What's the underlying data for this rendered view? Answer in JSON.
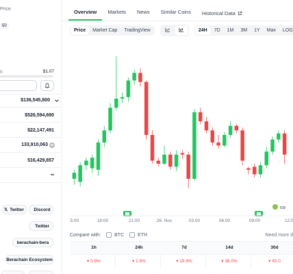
{
  "left": {
    "price_label": "Price",
    "small_value": "50",
    "range_low": "0",
    "range_high": "$1.07",
    "stats": [
      {
        "value": "$136,545,800",
        "icon": "chevron-down-icon"
      },
      {
        "value": "$526,594,690"
      },
      {
        "value": "$22,147,491"
      },
      {
        "value": "133,910,063",
        "icon": "info-icon"
      },
      {
        "value": "516,429,857"
      },
      {
        "value": "∞"
      }
    ],
    "links": {
      "twitter": "Twitter",
      "discord": "Discord",
      "search_twitter": "Twitter",
      "api_id": "berachain-bera",
      "category": "Berachain Ecosystem"
    }
  },
  "main": {
    "tabs": [
      {
        "label": "Overview",
        "active": true
      },
      {
        "label": "Markets"
      },
      {
        "label": "News"
      },
      {
        "label": "Similar Coins"
      },
      {
        "label": "Historical Data"
      }
    ],
    "chart_modes": [
      {
        "label": "Price",
        "selected": true
      },
      {
        "label": "Market Cap"
      },
      {
        "label": "TradingView"
      }
    ],
    "ranges": [
      {
        "label": "24H",
        "selected": true
      },
      {
        "label": "7D"
      },
      {
        "label": "1M"
      },
      {
        "label": "3M"
      },
      {
        "label": "1Y"
      },
      {
        "label": "Max"
      },
      {
        "label": "LOG"
      }
    ],
    "watermark": "co",
    "compare": {
      "label": "Compare with:",
      "options": [
        "BTC",
        "ETH"
      ],
      "right_text": "Need more d"
    },
    "performance": {
      "headers": [
        "1h",
        "24h",
        "7d",
        "14d",
        "30d"
      ],
      "values": [
        "▾ 0.9%",
        "▾ 1.6%",
        "▾ 19.9%",
        "▾ 36.0%",
        "▾ 45.0"
      ]
    }
  },
  "colors": {
    "up": "#22c55e",
    "down": "#ef4444",
    "accent": "#22c55e"
  },
  "chart_data": {
    "type": "candlestick",
    "x_ticks": [
      "15:00",
      "18:00",
      "21:00",
      "26. Nov",
      "03:00",
      "06:00",
      "09:00",
      "12:0"
    ],
    "candles": [
      {
        "o": 54,
        "c": 58,
        "h": 60,
        "l": 50
      },
      {
        "o": 52,
        "c": 63,
        "h": 65,
        "l": 49
      },
      {
        "o": 63,
        "c": 66,
        "h": 68,
        "l": 60
      },
      {
        "o": 61,
        "c": 68,
        "h": 70,
        "l": 58
      },
      {
        "o": 60,
        "c": 78,
        "h": 80,
        "l": 56
      },
      {
        "o": 78,
        "c": 86,
        "h": 89,
        "l": 75
      },
      {
        "o": 86,
        "c": 101,
        "h": 104,
        "l": 84
      },
      {
        "o": 101,
        "c": 107,
        "h": 135,
        "l": 99
      },
      {
        "o": 107,
        "c": 108,
        "h": 111,
        "l": 104
      },
      {
        "o": 108,
        "c": 119,
        "h": 121,
        "l": 105
      },
      {
        "o": 119,
        "c": 124,
        "h": 126,
        "l": 116
      },
      {
        "o": 124,
        "c": 118,
        "h": 127,
        "l": 115
      },
      {
        "o": 118,
        "c": 83,
        "h": 119,
        "l": 80
      },
      {
        "o": 83,
        "c": 66,
        "h": 86,
        "l": 64
      },
      {
        "o": 66,
        "c": 64,
        "h": 68,
        "l": 62
      },
      {
        "o": 64,
        "c": 70,
        "h": 76,
        "l": 63
      },
      {
        "o": 70,
        "c": 62,
        "h": 72,
        "l": 60
      },
      {
        "o": 62,
        "c": 70,
        "h": 73,
        "l": 59
      },
      {
        "o": 71,
        "c": 70,
        "h": 73,
        "l": 67
      },
      {
        "o": 70,
        "c": 54,
        "h": 72,
        "l": 48
      },
      {
        "o": 54,
        "c": 98,
        "h": 100,
        "l": 53
      },
      {
        "o": 98,
        "c": 92,
        "h": 101,
        "l": 90
      },
      {
        "o": 92,
        "c": 86,
        "h": 95,
        "l": 84
      },
      {
        "o": 86,
        "c": 78,
        "h": 88,
        "l": 76
      },
      {
        "o": 78,
        "c": 76,
        "h": 83,
        "l": 74
      },
      {
        "o": 76,
        "c": 83,
        "h": 85,
        "l": 75
      },
      {
        "o": 83,
        "c": 89,
        "h": 92,
        "l": 81
      },
      {
        "o": 89,
        "c": 86,
        "h": 90,
        "l": 84
      },
      {
        "o": 86,
        "c": 66,
        "h": 88,
        "l": 63
      },
      {
        "o": 61,
        "c": 60,
        "h": 62,
        "l": 57
      },
      {
        "o": 62,
        "c": 57,
        "h": 64,
        "l": 55
      },
      {
        "o": 57,
        "c": 63,
        "h": 65,
        "l": 55
      },
      {
        "o": 63,
        "c": 72,
        "h": 75,
        "l": 61
      },
      {
        "o": 72,
        "c": 80,
        "h": 82,
        "l": 70
      },
      {
        "o": 80,
        "c": 84,
        "h": 86,
        "l": 78
      },
      {
        "o": 84,
        "c": 70,
        "h": 86,
        "l": 64
      }
    ],
    "ylim": [
      40,
      145
    ],
    "grid": false,
    "legend": "none"
  }
}
